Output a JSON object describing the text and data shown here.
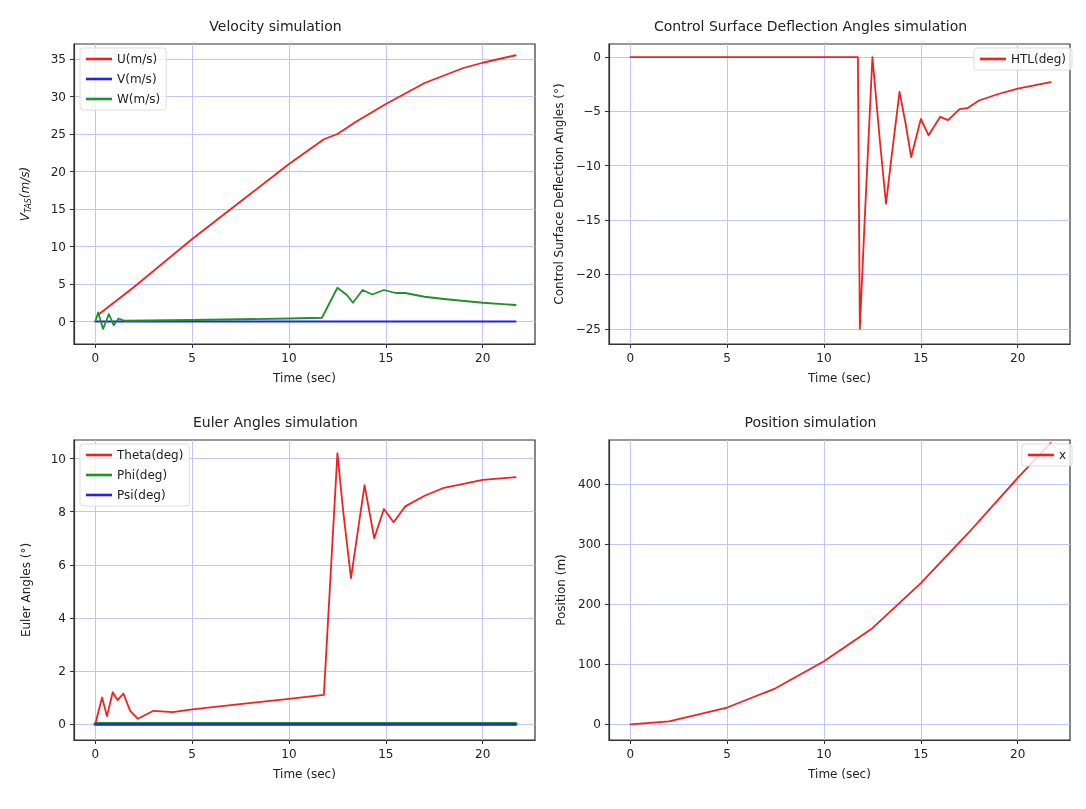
{
  "chart_data": [
    {
      "type": "line",
      "title": "Velocity simulation",
      "xlabel": "Time (sec)",
      "ylabel": "V$_{TAS}$(m/s)",
      "xlim": [
        -1.1,
        22.7
      ],
      "xticks": [
        0,
        5,
        10,
        15,
        20
      ],
      "ylim": [
        -3,
        37
      ],
      "yticks": [
        0,
        5,
        10,
        15,
        20,
        25,
        30,
        35
      ],
      "grid": true,
      "legend": "top left",
      "series": [
        {
          "name": "U(m/s)",
          "color": "#ee2222",
          "x": [
            0.2,
            2,
            5,
            8,
            10,
            11.8,
            12.5,
            13.5,
            15,
            17,
            19,
            20,
            21.7
          ],
          "values": [
            1,
            4.6,
            11,
            17,
            21,
            24.3,
            25,
            26.7,
            29,
            31.8,
            33.8,
            34.5,
            35.5
          ]
        },
        {
          "name": "V(m/s)",
          "color": "#2222ee",
          "x": [
            0,
            21.7
          ],
          "values": [
            0,
            0
          ]
        },
        {
          "name": "W(m/s)",
          "color": "#22902a",
          "x": [
            0,
            0.15,
            0.4,
            0.7,
            0.95,
            1.2,
            1.5,
            5,
            10,
            11.7,
            12.5,
            13,
            13.3,
            13.8,
            14.3,
            14.9,
            15.5,
            16,
            17,
            18,
            20,
            21.7
          ],
          "values": [
            0,
            1.2,
            -1,
            1,
            -0.5,
            0.4,
            0.1,
            0.2,
            0.4,
            0.5,
            4.5,
            3.5,
            2.5,
            4.2,
            3.6,
            4.2,
            3.8,
            3.8,
            3.3,
            3,
            2.5,
            2.2
          ]
        }
      ]
    },
    {
      "type": "line",
      "title": "Control Surface Deflection Angles simulation",
      "xlabel": "Time (sec)",
      "ylabel": "Control Surface Deflection Angles (°)",
      "xlim": [
        -1.1,
        22.7
      ],
      "xticks": [
        0,
        5,
        10,
        15,
        20
      ],
      "ylim": [
        -26.4,
        1.2
      ],
      "yticks": [
        0,
        -5,
        -10,
        -15,
        -20,
        -25
      ],
      "grid": true,
      "legend": "top right",
      "series": [
        {
          "name": "HTL(deg)",
          "color": "#ee2222",
          "x": [
            0,
            11.75,
            11.85,
            12.1,
            12.5,
            12.9,
            13.2,
            13.5,
            13.9,
            14.2,
            14.5,
            15,
            15.4,
            16,
            16.4,
            17,
            17.4,
            18,
            19,
            20,
            21.7
          ],
          "values": [
            0,
            0,
            -25,
            -15,
            0,
            -8,
            -13.5,
            -9,
            -3.2,
            -6,
            -9.2,
            -5.7,
            -7.2,
            -5.5,
            -5.8,
            -4.8,
            -4.7,
            -4,
            -3.4,
            -2.9,
            -2.3
          ]
        }
      ]
    },
    {
      "type": "line",
      "title": "Euler Angles simulation",
      "xlabel": "Time (sec)",
      "ylabel": "Euler Angles (°)",
      "xlim": [
        -1.1,
        22.7
      ],
      "xticks": [
        0,
        5,
        10,
        15,
        20
      ],
      "ylim": [
        -0.6,
        10.7
      ],
      "yticks": [
        0,
        2,
        4,
        6,
        8,
        10
      ],
      "grid": true,
      "legend": "top left",
      "series": [
        {
          "name": "Theta(deg)",
          "color": "#ee2222",
          "x": [
            0,
            0.35,
            0.6,
            0.9,
            1.15,
            1.45,
            1.8,
            2.2,
            3,
            4,
            5,
            10,
            11.8,
            12.5,
            12.8,
            13.2,
            13.5,
            13.9,
            14.4,
            14.9,
            15.4,
            16,
            17,
            18,
            20,
            21.7
          ],
          "values": [
            0,
            1,
            0.3,
            1.2,
            0.9,
            1.15,
            0.5,
            0.2,
            0.5,
            0.45,
            0.55,
            0.95,
            1.1,
            10.2,
            8,
            5.5,
            7,
            9,
            7,
            8.1,
            7.6,
            8.2,
            8.6,
            8.9,
            9.2,
            9.3
          ]
        },
        {
          "name": "Phi(deg)",
          "color": "#22902a",
          "x": [
            0,
            21.7
          ],
          "values": [
            0,
            0
          ]
        },
        {
          "name": "Psi(deg)",
          "color": "#2222ee",
          "x": [
            0,
            21.7
          ],
          "values": [
            0,
            0
          ]
        }
      ]
    },
    {
      "type": "line",
      "title": "Position simulation",
      "xlabel": "Time (sec)",
      "ylabel": "Position (m)",
      "xlim": [
        -1.1,
        22.7
      ],
      "xticks": [
        0,
        5,
        10,
        15,
        20
      ],
      "ylim": [
        -26,
        473
      ],
      "yticks": [
        0,
        100,
        200,
        300,
        400
      ],
      "grid": true,
      "legend": "top right",
      "series": [
        {
          "name": "x",
          "color": "#ee2222",
          "x": [
            0,
            2,
            5,
            7.5,
            10,
            12.5,
            15,
            17.5,
            20,
            21.7
          ],
          "values": [
            0,
            5,
            28,
            60,
            105,
            160,
            235,
            320,
            410,
            468
          ]
        }
      ]
    }
  ]
}
